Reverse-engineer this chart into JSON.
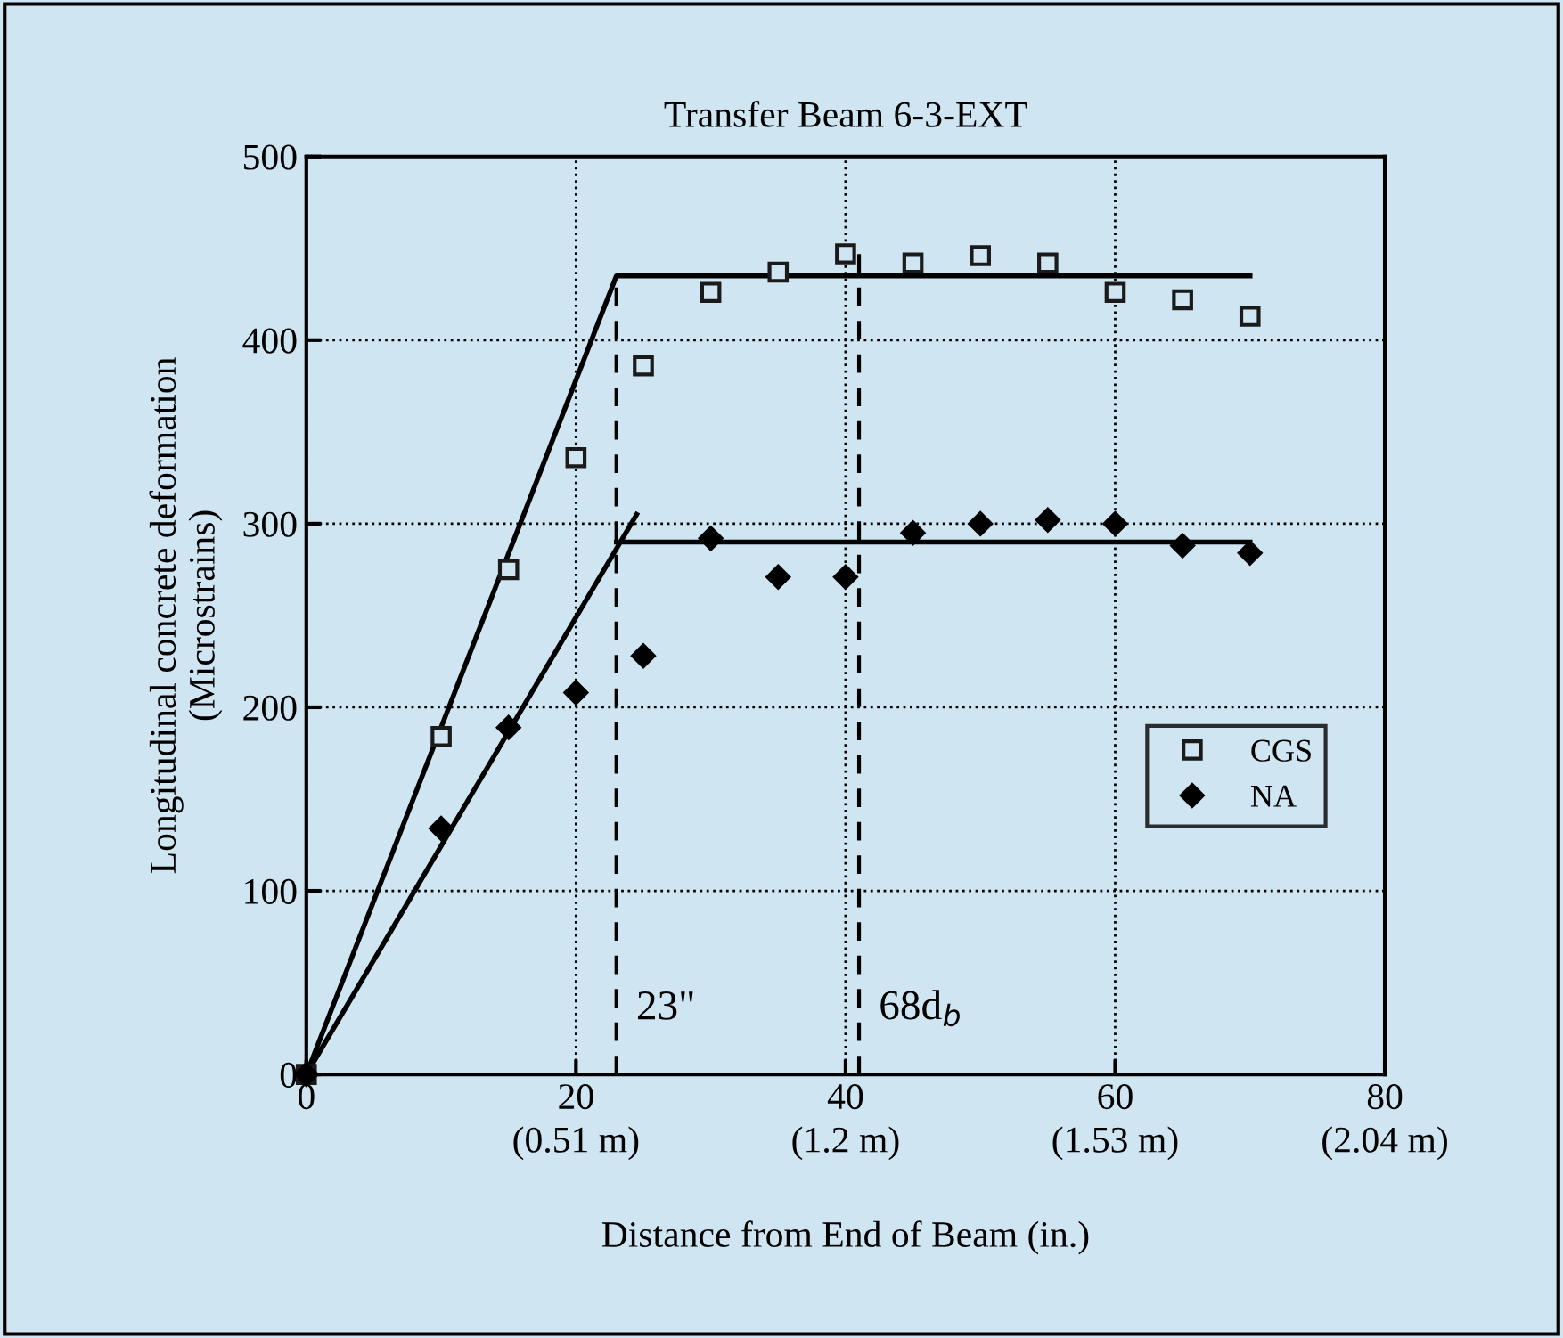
{
  "chart_data": {
    "type": "scatter",
    "title": "Transfer Beam 6-3-EXT",
    "xlabel": "Distance from End of Beam (in.)",
    "ylabel": "Longitudinal concrete deformation\n(Microstrains)",
    "xlim": [
      0,
      80
    ],
    "ylim": [
      0,
      500
    ],
    "xticks": [
      0,
      20,
      40,
      60,
      80
    ],
    "yticks": [
      0,
      100,
      200,
      300,
      400,
      500
    ],
    "grid": true,
    "legend": "right",
    "series": [
      {
        "name": "CGS",
        "color": "#1a1a1a",
        "marker": "square",
        "x": [
          0,
          10,
          15,
          20,
          25,
          30,
          35,
          40,
          45,
          50,
          55,
          60,
          65,
          70
        ],
        "values": [
          0,
          184,
          275,
          336,
          386,
          426,
          437,
          447,
          442,
          446,
          442,
          426,
          422,
          413
        ]
      },
      {
        "name": "NA",
        "color": "#000000",
        "marker": "diamond",
        "x": [
          0,
          10,
          15,
          20,
          25,
          30,
          35,
          40,
          45,
          50,
          55,
          60,
          65,
          70
        ],
        "values": [
          0,
          134,
          189,
          208,
          228,
          292,
          271,
          271,
          295,
          300,
          302,
          300,
          288,
          284
        ]
      },
      {
        "type": "line",
        "color": "#000000",
        "marker": "none",
        "line_style": "solid",
        "x": [
          0,
          23,
          23,
          70
        ],
        "values": [
          0,
          435,
          435,
          435
        ]
      },
      {
        "type": "line",
        "color": "#000000",
        "marker": "none",
        "line_style": "solid",
        "x": [
          0,
          24.5,
          null,
          23,
          70
        ],
        "values": [
          0,
          305,
          null,
          290,
          290
        ]
      },
      {
        "type": "line",
        "color": "#000000",
        "marker": "none",
        "line_style": "dashed",
        "x": [
          23,
          23
        ],
        "values": [
          0,
          435
        ]
      },
      {
        "type": "line",
        "color": "#000000",
        "marker": "none",
        "line_style": "dashed",
        "x": [
          41,
          41
        ],
        "values": [
          0,
          452
        ]
      }
    ],
    "annotations": [
      {
        "text": "23\"",
        "x": 23,
        "y": 30
      },
      {
        "text": "68d$_{b}$",
        "x": 41,
        "y": 30
      },
      "(0.51 m)",
      "(1.2 m)",
      "(1.53 m)",
      "(2.04 m)"
    ]
  }
}
